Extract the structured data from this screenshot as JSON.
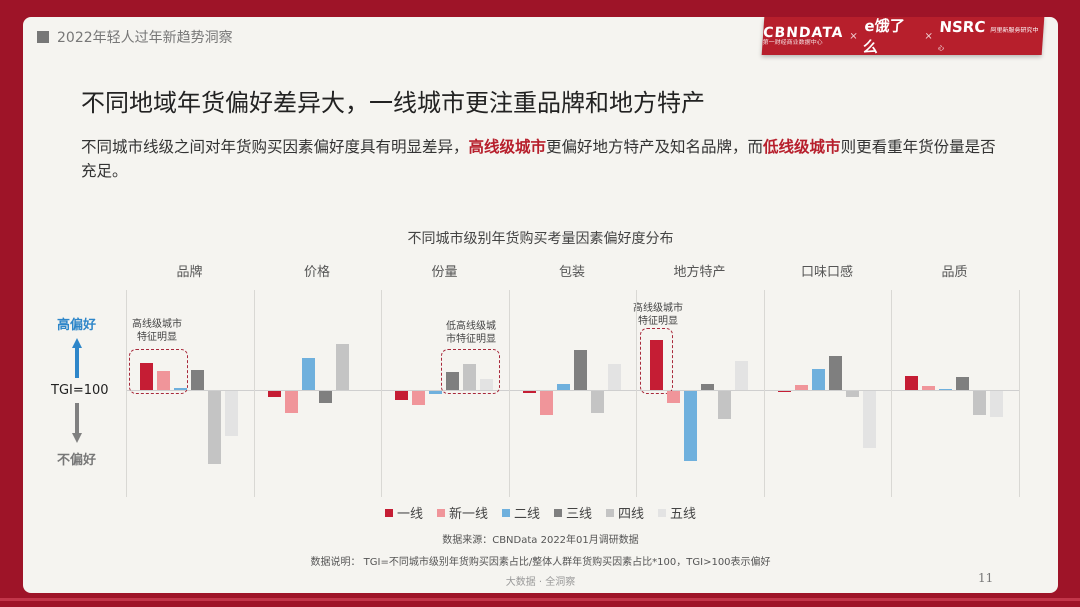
{
  "header": {
    "section_tag": "2022年轻人过年新趋势洞察",
    "brands": {
      "cbndata": "CBNDATA",
      "cbndata_sub": "第一财经商业数据中心",
      "separator": "×",
      "eleme": "e饿了么",
      "nsrc": "NSRC",
      "nsrc_sub": "阿里新服务研究中心"
    }
  },
  "title": "不同地域年货偏好差异大，一线城市更注重品牌和地方特产",
  "description": {
    "part1": "不同城市线级之间对年货购买因素偏好度具有明显差异，",
    "hl1": "高线级城市",
    "part2": "更偏好地方特产及知名品牌，而",
    "hl2": "低线级城市",
    "part3": "则更看重年货份量是否充足。"
  },
  "axis_labels": {
    "high": "高偏好",
    "baseline": "TGI=100",
    "low": "不偏好"
  },
  "annotations": [
    {
      "text_line1": "高线级城市",
      "text_line2": "特征明显",
      "category": "品牌"
    },
    {
      "text_line1": "低高线级城",
      "text_line2": "市特征明显",
      "category": "份量"
    },
    {
      "text_line1": "高线级城市",
      "text_line2": "特征明显",
      "category": "地方特产"
    }
  ],
  "legend": [
    {
      "label": "一线",
      "color": "#c51d34"
    },
    {
      "label": "新一线",
      "color": "#f0959a"
    },
    {
      "label": "二线",
      "color": "#6fb0dd"
    },
    {
      "label": "三线",
      "color": "#7f7f7f"
    },
    {
      "label": "四线",
      "color": "#c4c4c4"
    },
    {
      "label": "五线",
      "color": "#e3e3e3"
    }
  ],
  "source": "数据来源：CBNData 2022年01月调研数据",
  "note": "数据说明：  TGI=不同城市级别年货购买因素占比/整体人群年货购买因素占比*100，TGI>100表示偏好",
  "footer": "大数据 · 全洞察",
  "page_number": "11",
  "chart_data": {
    "type": "bar",
    "title": "不同城市级别年货购买考量因素偏好度分布",
    "xlabel": "",
    "ylabel": "TGI (relative to 100, unlabeled scale; values are pixel-estimated deviations)",
    "baseline": 100,
    "categories": [
      "品牌",
      "价格",
      "份量",
      "包装",
      "地方特产",
      "口味口感",
      "品质"
    ],
    "series": [
      {
        "name": "一线",
        "values": [
          27,
          -6,
          -9,
          -2,
          50,
          -1,
          14
        ]
      },
      {
        "name": "新一线",
        "values": [
          19,
          -22,
          -14,
          -24,
          -12,
          5,
          4
        ]
      },
      {
        "name": "二线",
        "values": [
          2,
          32,
          -3,
          6,
          -70,
          21,
          1
        ]
      },
      {
        "name": "三线",
        "values": [
          20,
          -12,
          18,
          40,
          6,
          34,
          13
        ]
      },
      {
        "name": "四线",
        "values": [
          -73,
          46,
          26,
          -22,
          -28,
          -6,
          -24
        ]
      },
      {
        "name": "五线",
        "values": [
          -45,
          0,
          11,
          26,
          29,
          -57,
          -26
        ]
      }
    ],
    "legend_position": "bottom",
    "grid": false
  }
}
